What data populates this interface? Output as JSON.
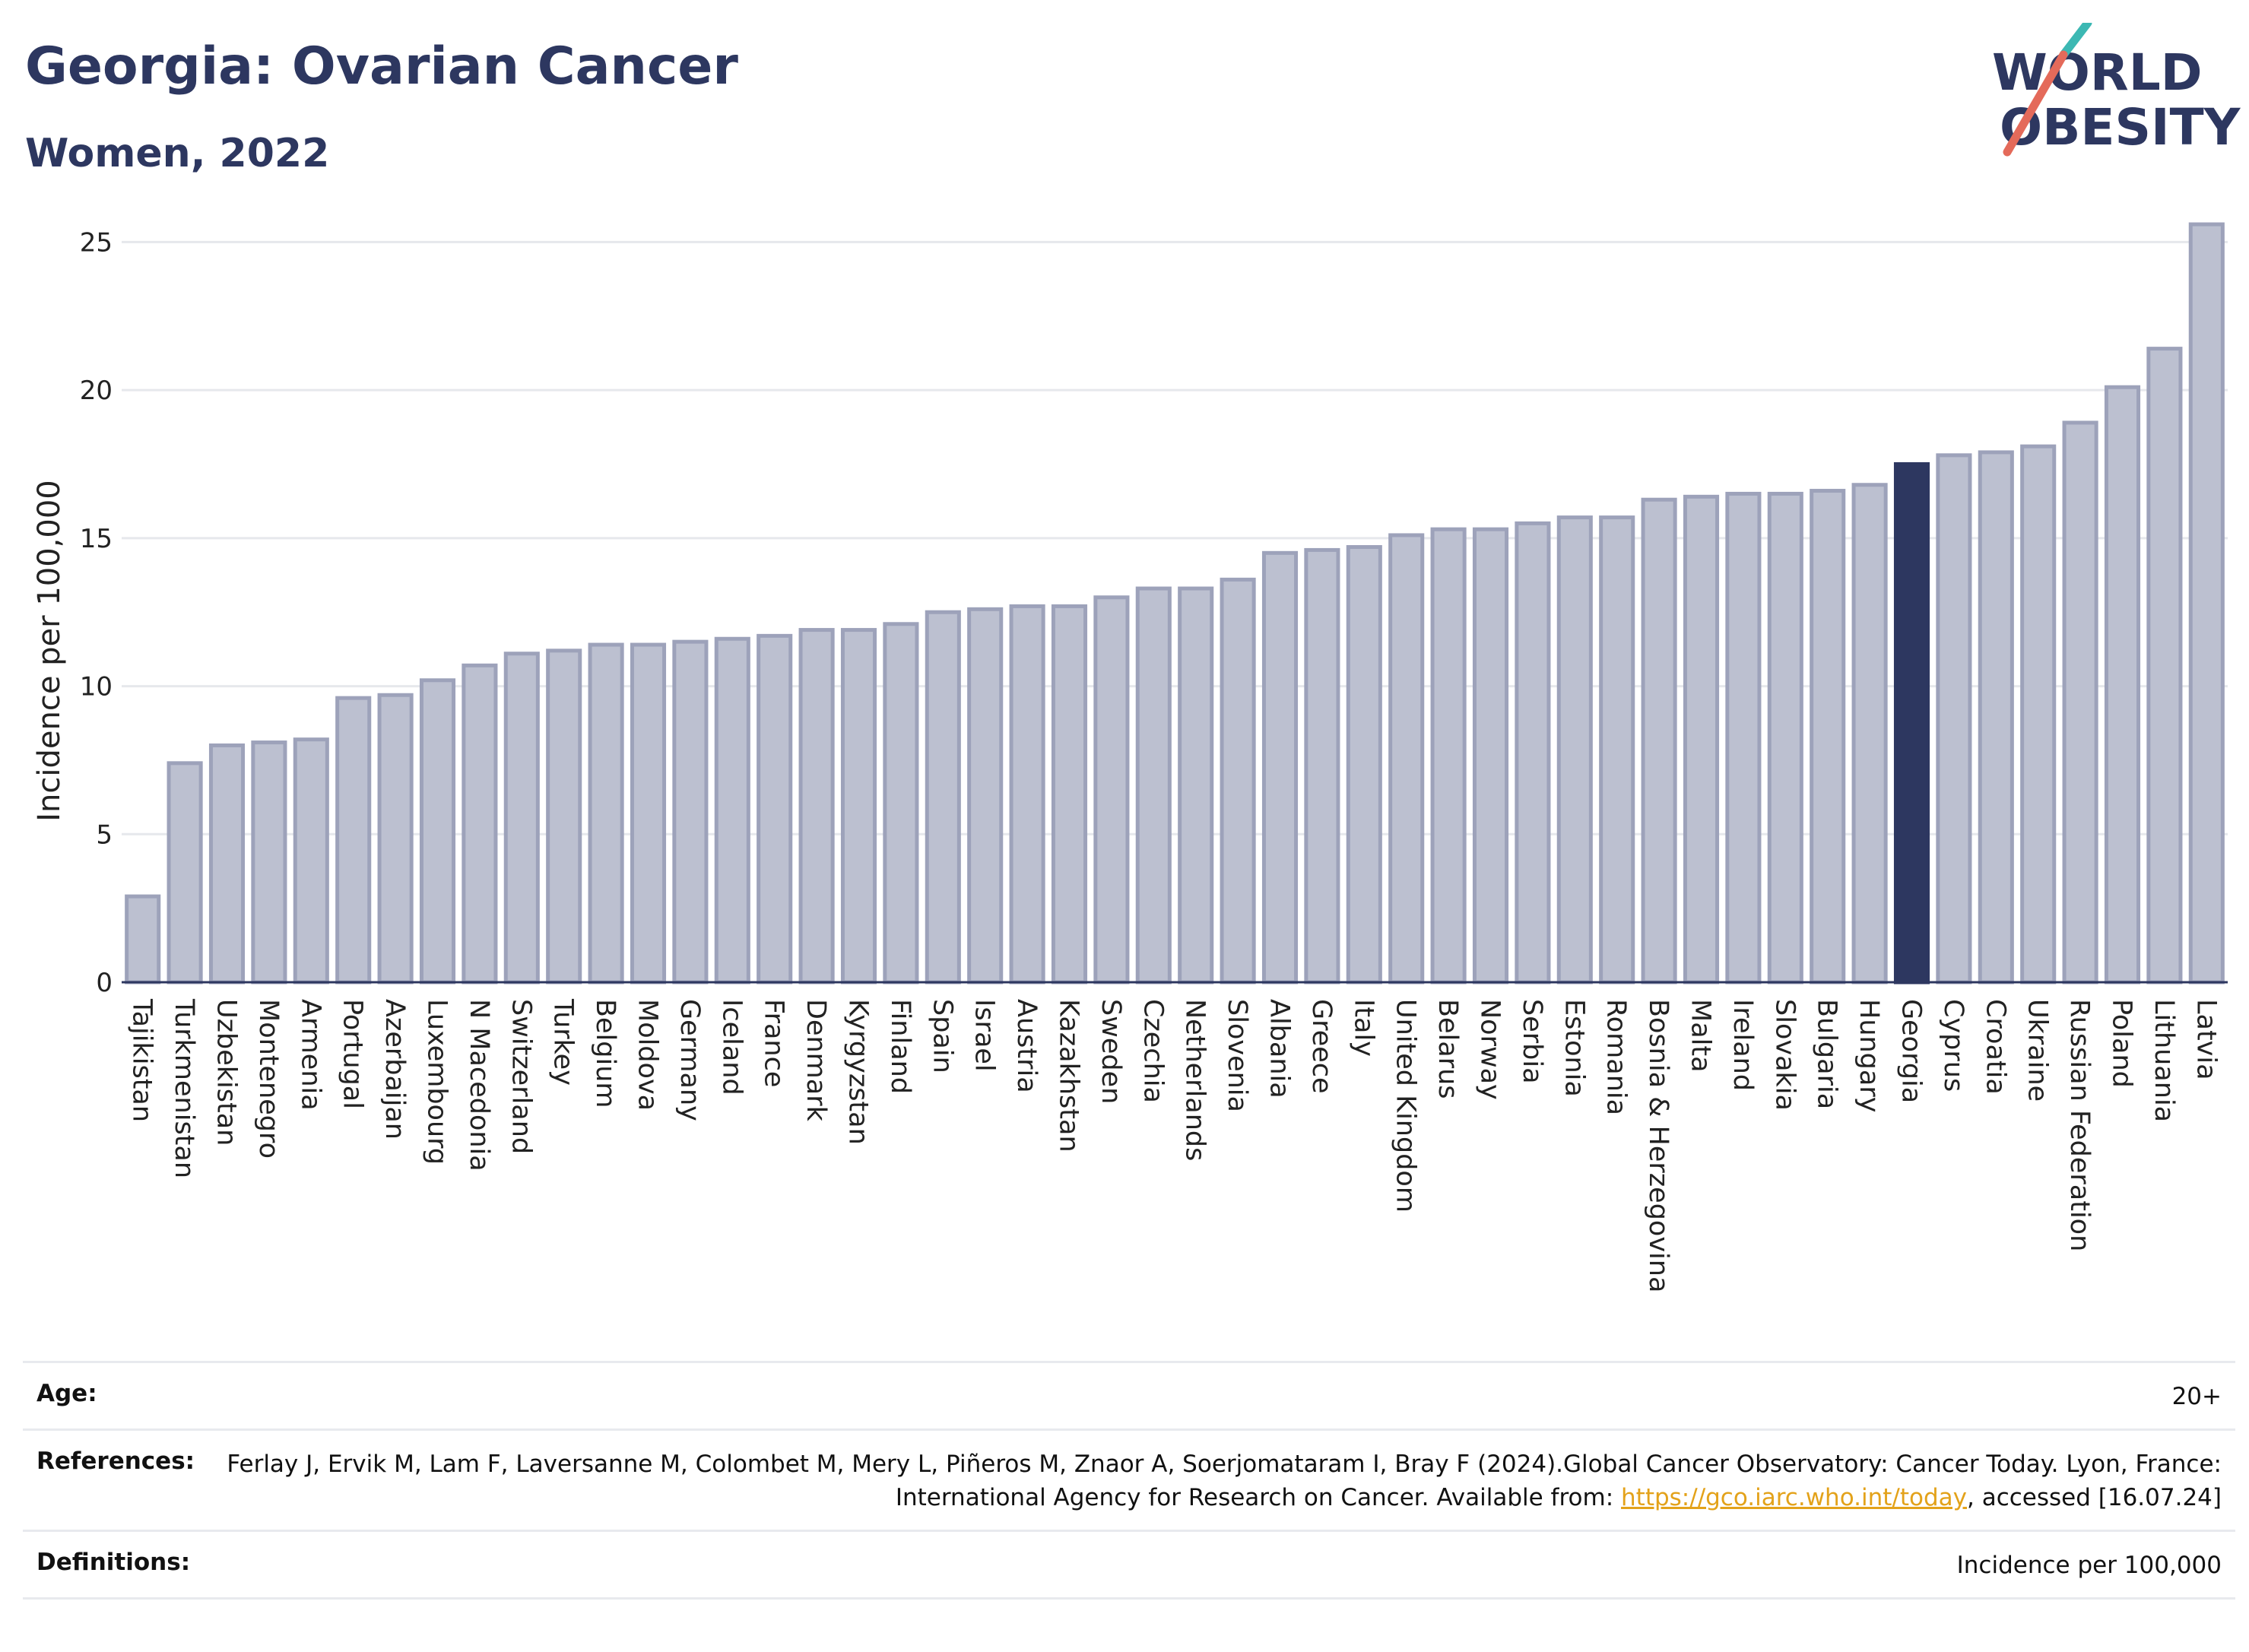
{
  "header": {
    "title": "Georgia: Ovarian Cancer",
    "subtitle": "Women, 2022"
  },
  "logo": {
    "line1": "WORLD",
    "line2": "OBESITY",
    "colors": {
      "text": "#2d3760",
      "slash_teal": "#3cb8b3",
      "slash_red": "#e46a5a"
    }
  },
  "chart_data": {
    "type": "bar",
    "ylabel": "Incidence per 100,000",
    "ylim": [
      0,
      26.5
    ],
    "yticks": [
      0,
      5,
      10,
      15,
      20,
      25
    ],
    "grid": true,
    "highlight": "Georgia",
    "colors": {
      "bar": "#bcc0d0",
      "bar_edge": "#9da2ba",
      "highlight": "#2d3760",
      "grid": "#e6e8ec"
    },
    "categories": [
      "Tajikistan",
      "Turkmenistan",
      "Uzbekistan",
      "Montenegro",
      "Armenia",
      "Portugal",
      "Azerbaijan",
      "Luxembourg",
      "N Macedonia",
      "Switzerland",
      "Turkey",
      "Belgium",
      "Moldova",
      "Germany",
      "Iceland",
      "France",
      "Denmark",
      "Kyrgyzstan",
      "Finland",
      "Spain",
      "Israel",
      "Austria",
      "Kazakhstan",
      "Sweden",
      "Czechia",
      "Netherlands",
      "Slovenia",
      "Albania",
      "Greece",
      "Italy",
      "United Kingdom",
      "Belarus",
      "Norway",
      "Serbia",
      "Estonia",
      "Romania",
      "Bosnia & Herzegovina",
      "Malta",
      "Ireland",
      "Slovakia",
      "Bulgaria",
      "Hungary",
      "Georgia",
      "Cyprus",
      "Croatia",
      "Ukraine",
      "Russian Federation",
      "Poland",
      "Lithuania",
      "Latvia"
    ],
    "values": [
      2.9,
      7.4,
      8.0,
      8.1,
      8.2,
      9.6,
      9.7,
      10.2,
      10.7,
      11.1,
      11.2,
      11.4,
      11.4,
      11.5,
      11.6,
      11.7,
      11.9,
      11.9,
      12.1,
      12.5,
      12.6,
      12.7,
      12.7,
      13.0,
      13.3,
      13.3,
      13.6,
      14.5,
      14.6,
      14.7,
      15.1,
      15.3,
      15.3,
      15.5,
      15.7,
      15.7,
      16.3,
      16.4,
      16.5,
      16.5,
      16.6,
      16.8,
      17.5,
      17.8,
      17.9,
      18.1,
      18.9,
      20.1,
      21.4,
      25.6
    ]
  },
  "info": {
    "age_label": "Age:",
    "age_value": "20+",
    "references_label": "References:",
    "references_text_1": "Ferlay J, Ervik M, Lam F, Laversanne M, Colombet M, Mery L, Piñeros M, Znaor A, Soerjomataram I, Bray F (2024).Global Cancer Observatory: Cancer Today. Lyon, France: International Agency for Research on Cancer. Available from: ",
    "references_link": "https://gco.iarc.who.int/today",
    "references_text_2": ", accessed [16.07.24]",
    "definitions_label": "Definitions:",
    "definitions_value": "Incidence per 100,000"
  }
}
